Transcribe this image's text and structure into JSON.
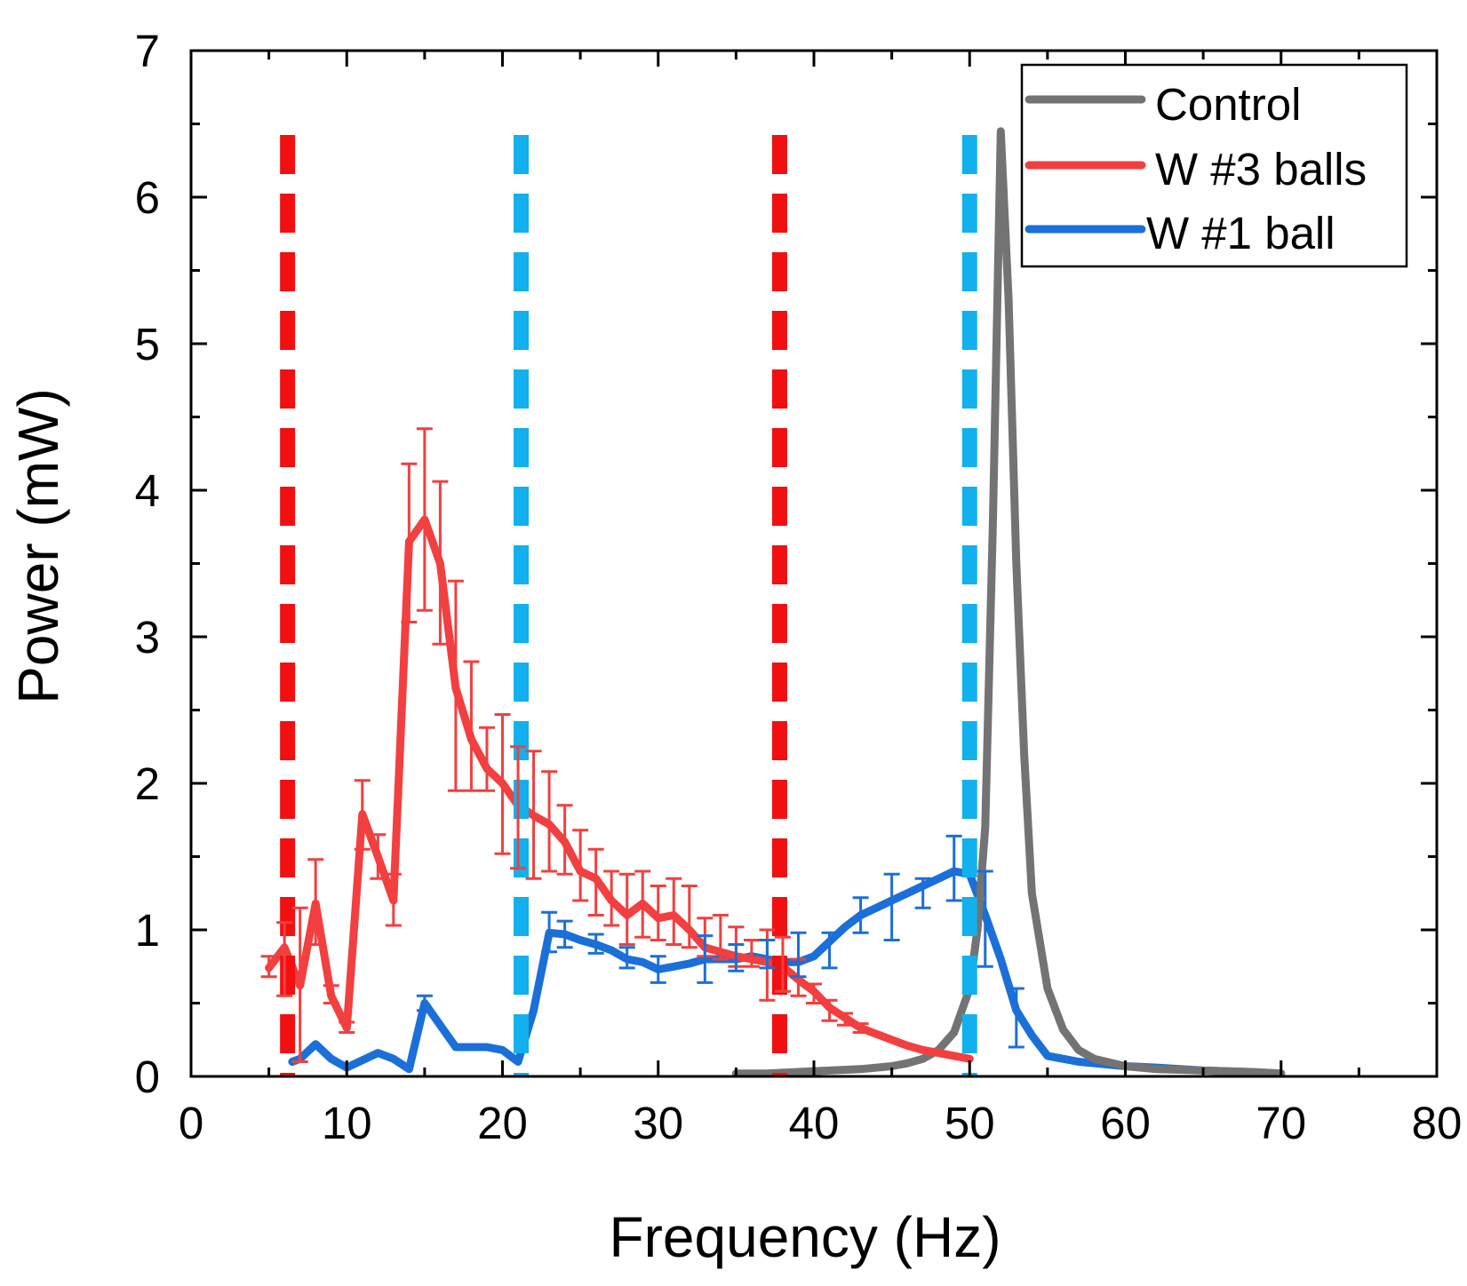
{
  "chart_data": {
    "type": "line",
    "xlabel": "Frequency (Hz)",
    "ylabel": "Power (mW)",
    "xlim": [
      0,
      80
    ],
    "ylim": [
      0,
      7
    ],
    "xticks": [
      "0",
      "10",
      "20",
      "30",
      "40",
      "50",
      "60",
      "70",
      "80"
    ],
    "yticks": [
      "0",
      "1",
      "2",
      "3",
      "4",
      "5",
      "6",
      "7"
    ],
    "grid": false,
    "legend_position": "top-right",
    "legend": [
      "Control",
      "W #3 balls",
      "W #1 ball"
    ],
    "colors": {
      "control": "#737373",
      "w3": "#f23f3f",
      "w1": "#1b6fd8",
      "vline_red": "#f20f0f",
      "vline_cyan": "#12b0ec"
    },
    "vlines": [
      {
        "x": 6.2,
        "series": "W #3 balls",
        "color": "#f20f0f"
      },
      {
        "x": 37.8,
        "series": "W #3 balls",
        "color": "#f20f0f"
      },
      {
        "x": 21.2,
        "series": "W #1 ball",
        "color": "#12b0ec"
      },
      {
        "x": 50.0,
        "series": "W #1 ball",
        "color": "#12b0ec"
      }
    ],
    "series": [
      {
        "name": "Control",
        "color": "#737373",
        "x": [
          35,
          37,
          39,
          41,
          43,
          45,
          46,
          47,
          48,
          49,
          50,
          50.5,
          51,
          51.5,
          52,
          52.5,
          53,
          53.5,
          54,
          55,
          56,
          57,
          58,
          60,
          62,
          65,
          68,
          70
        ],
        "y": [
          0.02,
          0.02,
          0.03,
          0.04,
          0.05,
          0.07,
          0.09,
          0.12,
          0.18,
          0.3,
          0.6,
          1.0,
          1.7,
          3.8,
          6.45,
          5.3,
          3.5,
          2.2,
          1.25,
          0.6,
          0.32,
          0.18,
          0.12,
          0.07,
          0.05,
          0.04,
          0.03,
          0.02
        ]
      },
      {
        "name": "W #3 balls",
        "color": "#f23f3f",
        "x": [
          5,
          6,
          7,
          8,
          9,
          10,
          11,
          12,
          13,
          14,
          15,
          16,
          17,
          18,
          19,
          20,
          21,
          22,
          23,
          24,
          25,
          26,
          27,
          28,
          29,
          30,
          31,
          32,
          33,
          34,
          35,
          36,
          37,
          38,
          39,
          40,
          41,
          42,
          43,
          44,
          45,
          46,
          47,
          48,
          49,
          50
        ],
        "y": [
          0.74,
          0.88,
          0.62,
          1.18,
          0.55,
          0.33,
          1.79,
          1.5,
          1.2,
          3.65,
          3.8,
          3.5,
          2.65,
          2.3,
          2.1,
          2.0,
          1.85,
          1.78,
          1.72,
          1.6,
          1.4,
          1.35,
          1.2,
          1.1,
          1.18,
          1.08,
          1.1,
          1.0,
          0.88,
          0.85,
          0.82,
          0.8,
          0.78,
          0.75,
          0.66,
          0.58,
          0.47,
          0.4,
          0.33,
          0.29,
          0.25,
          0.21,
          0.18,
          0.16,
          0.14,
          0.12
        ],
        "error_bars": [
          {
            "x": 5,
            "lo": 0.68,
            "hi": 0.82
          },
          {
            "x": 6,
            "lo": 0.55,
            "hi": 1.05
          },
          {
            "x": 7,
            "lo": 0.1,
            "hi": 1.15
          },
          {
            "x": 8,
            "lo": 0.9,
            "hi": 1.48
          },
          {
            "x": 9,
            "lo": 0.5,
            "hi": 0.62
          },
          {
            "x": 10,
            "lo": 0.3,
            "hi": 0.37
          },
          {
            "x": 11,
            "lo": 1.55,
            "hi": 2.02
          },
          {
            "x": 12,
            "lo": 1.35,
            "hi": 1.65
          },
          {
            "x": 13,
            "lo": 1.03,
            "hi": 1.38
          },
          {
            "x": 14,
            "lo": 3.1,
            "hi": 4.18
          },
          {
            "x": 15,
            "lo": 3.18,
            "hi": 4.42
          },
          {
            "x": 16,
            "lo": 2.95,
            "hi": 4.06
          },
          {
            "x": 17,
            "lo": 1.95,
            "hi": 3.38
          },
          {
            "x": 18,
            "lo": 1.95,
            "hi": 2.83
          },
          {
            "x": 19,
            "lo": 1.95,
            "hi": 2.38
          },
          {
            "x": 20,
            "lo": 1.52,
            "hi": 2.47
          },
          {
            "x": 21,
            "lo": 1.42,
            "hi": 2.25
          },
          {
            "x": 22,
            "lo": 1.35,
            "hi": 2.22
          },
          {
            "x": 23,
            "lo": 1.4,
            "hi": 2.08
          },
          {
            "x": 24,
            "lo": 1.38,
            "hi": 1.85
          },
          {
            "x": 25,
            "lo": 1.2,
            "hi": 1.68
          },
          {
            "x": 26,
            "lo": 1.1,
            "hi": 1.55
          },
          {
            "x": 27,
            "lo": 1.03,
            "hi": 1.4
          },
          {
            "x": 28,
            "lo": 0.9,
            "hi": 1.38
          },
          {
            "x": 29,
            "lo": 0.95,
            "hi": 1.4
          },
          {
            "x": 30,
            "lo": 0.93,
            "hi": 1.3
          },
          {
            "x": 31,
            "lo": 0.9,
            "hi": 1.35
          },
          {
            "x": 32,
            "lo": 0.88,
            "hi": 1.3
          },
          {
            "x": 33,
            "lo": 0.82,
            "hi": 1.08
          },
          {
            "x": 34,
            "lo": 0.8,
            "hi": 1.1
          },
          {
            "x": 35,
            "lo": 0.75,
            "hi": 1.02
          },
          {
            "x": 36,
            "lo": 0.75,
            "hi": 0.93
          },
          {
            "x": 37,
            "lo": 0.52,
            "hi": 1.0
          },
          {
            "x": 38,
            "lo": 0.58,
            "hi": 0.95
          },
          {
            "x": 39,
            "lo": 0.55,
            "hi": 0.8
          },
          {
            "x": 40,
            "lo": 0.5,
            "hi": 0.63
          },
          {
            "x": 41,
            "lo": 0.38,
            "hi": 0.52
          },
          {
            "x": 42,
            "lo": 0.35,
            "hi": 0.43
          },
          {
            "x": 43,
            "lo": 0.3,
            "hi": 0.36
          }
        ]
      },
      {
        "name": "W #1 ball",
        "color": "#1b6fd8",
        "x": [
          6.5,
          7,
          7.5,
          8,
          9,
          10,
          11,
          12,
          13,
          14,
          15,
          16,
          17,
          18,
          19,
          20,
          21,
          22,
          23,
          24,
          25,
          26,
          27,
          28,
          29,
          30,
          31,
          32,
          33,
          34,
          35,
          36,
          37,
          38,
          39,
          40,
          41,
          42,
          43,
          44,
          45,
          46,
          47,
          48,
          49,
          50,
          51,
          52,
          53,
          54,
          55,
          56,
          57,
          58,
          60,
          62,
          65,
          68,
          70
        ],
        "y": [
          0.1,
          0.12,
          0.17,
          0.22,
          0.12,
          0.06,
          0.11,
          0.16,
          0.12,
          0.05,
          0.5,
          0.35,
          0.2,
          0.2,
          0.2,
          0.18,
          0.1,
          0.45,
          0.98,
          0.97,
          0.93,
          0.9,
          0.86,
          0.8,
          0.78,
          0.73,
          0.75,
          0.77,
          0.8,
          0.8,
          0.8,
          0.82,
          0.8,
          0.78,
          0.78,
          0.82,
          0.92,
          1.02,
          1.1,
          1.15,
          1.2,
          1.25,
          1.3,
          1.35,
          1.4,
          1.38,
          1.1,
          0.8,
          0.45,
          0.28,
          0.14,
          0.12,
          0.1,
          0.09,
          0.07,
          0.06,
          0.04,
          0.03,
          0.02
        ],
        "error_bars": [
          {
            "x": 15,
            "lo": 0.45,
            "hi": 0.55
          },
          {
            "x": 23,
            "lo": 0.85,
            "hi": 1.12
          },
          {
            "x": 24,
            "lo": 0.88,
            "hi": 1.06
          },
          {
            "x": 26,
            "lo": 0.84,
            "hi": 0.97
          },
          {
            "x": 28,
            "lo": 0.74,
            "hi": 0.88
          },
          {
            "x": 30,
            "lo": 0.64,
            "hi": 0.82
          },
          {
            "x": 33,
            "lo": 0.64,
            "hi": 0.96
          },
          {
            "x": 35,
            "lo": 0.72,
            "hi": 0.9
          },
          {
            "x": 37,
            "lo": 0.74,
            "hi": 0.93
          },
          {
            "x": 39,
            "lo": 0.68,
            "hi": 0.98
          },
          {
            "x": 41,
            "lo": 0.74,
            "hi": 0.98
          },
          {
            "x": 43,
            "lo": 0.98,
            "hi": 1.22
          },
          {
            "x": 45,
            "lo": 0.93,
            "hi": 1.38
          },
          {
            "x": 47,
            "lo": 1.15,
            "hi": 1.35
          },
          {
            "x": 49,
            "lo": 1.2,
            "hi": 1.64
          },
          {
            "x": 51,
            "lo": 0.75,
            "hi": 1.4
          },
          {
            "x": 53,
            "lo": 0.2,
            "hi": 0.6
          }
        ]
      }
    ]
  }
}
